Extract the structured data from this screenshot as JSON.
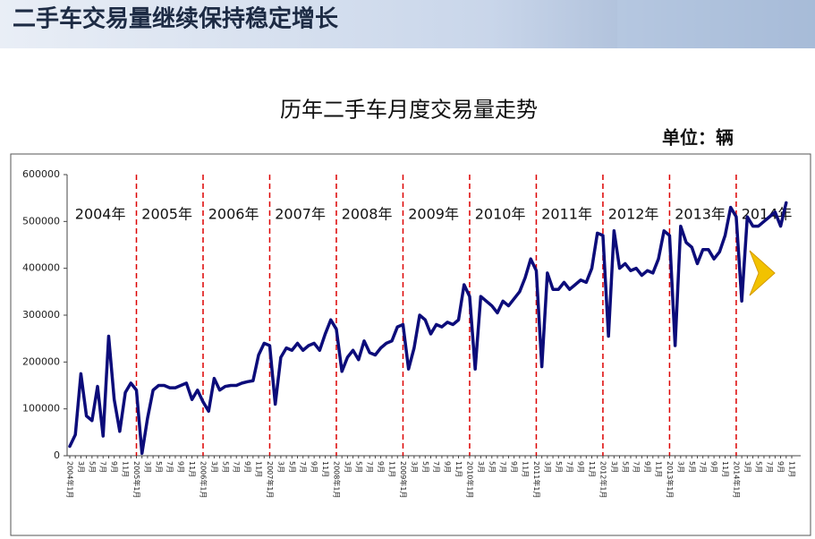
{
  "slide_title": "二手车交易量继续保持稳定增长",
  "chart_data": {
    "type": "line",
    "title": "历年二手车月度交易量走势",
    "unit": "单位：辆",
    "color": "#0c0c7a",
    "year_labels": [
      "2004年",
      "2005年",
      "2006年",
      "2007年",
      "2008年",
      "2009年",
      "2010年",
      "2011年",
      "2012年",
      "2013年",
      "2014年"
    ],
    "categories": [
      "2004年1月",
      null,
      "3月",
      null,
      "5月",
      null,
      "7月",
      null,
      "9月",
      null,
      "11月",
      null,
      "2005年1月",
      null,
      "3月",
      null,
      "5月",
      null,
      "7月",
      null,
      "9月",
      null,
      "11月",
      null,
      "2006年1月",
      null,
      "3月",
      null,
      "5月",
      null,
      "7月",
      null,
      "9月",
      null,
      "11月",
      null,
      "2007年1月",
      null,
      "3月",
      null,
      "5月",
      null,
      "7月",
      null,
      "9月",
      null,
      "11月",
      null,
      "2008年1月",
      null,
      "3月",
      null,
      "5月",
      null,
      "7月",
      null,
      "9月",
      null,
      "11月",
      null,
      "2009年1月",
      null,
      "3月",
      null,
      "5月",
      null,
      "7月",
      null,
      "9月",
      null,
      "11月",
      null,
      "2010年1月",
      null,
      "3月",
      null,
      "5月",
      null,
      "7月",
      null,
      "9月",
      null,
      "11月",
      null,
      "2011年1月",
      null,
      "3月",
      null,
      "5月",
      null,
      "7月",
      null,
      "9月",
      null,
      "11月",
      null,
      "2012年1月",
      null,
      "3月",
      null,
      "5月",
      null,
      "7月",
      null,
      "9月",
      null,
      "11月",
      null,
      "2013年1月",
      null,
      "3月",
      null,
      "5月",
      null,
      "7月",
      null,
      "9月",
      null,
      "11月",
      null,
      "2014年1月",
      null,
      "3月",
      null,
      "5月",
      null,
      "7月",
      null,
      "9月",
      null,
      "11月"
    ],
    "values": [
      20000,
      45000,
      175000,
      85000,
      75000,
      148000,
      42000,
      255000,
      120000,
      52000,
      135000,
      155000,
      140000,
      5000,
      80000,
      140000,
      150000,
      150000,
      145000,
      145000,
      150000,
      155000,
      120000,
      140000,
      115000,
      95000,
      165000,
      140000,
      148000,
      150000,
      150000,
      155000,
      158000,
      160000,
      215000,
      240000,
      235000,
      110000,
      210000,
      230000,
      225000,
      240000,
      225000,
      235000,
      240000,
      225000,
      260000,
      290000,
      270000,
      180000,
      210000,
      225000,
      205000,
      245000,
      220000,
      215000,
      230000,
      240000,
      245000,
      275000,
      280000,
      185000,
      230000,
      300000,
      290000,
      260000,
      280000,
      275000,
      285000,
      280000,
      290000,
      365000,
      340000,
      185000,
      340000,
      330000,
      320000,
      305000,
      330000,
      320000,
      335000,
      350000,
      380000,
      420000,
      395000,
      190000,
      390000,
      355000,
      355000,
      370000,
      355000,
      365000,
      375000,
      370000,
      400000,
      475000,
      470000,
      255000,
      480000,
      400000,
      410000,
      395000,
      400000,
      385000,
      395000,
      390000,
      420000,
      480000,
      470000,
      235000,
      490000,
      455000,
      445000,
      410000,
      440000,
      440000,
      420000,
      435000,
      470000,
      530000,
      510000,
      330000,
      510000,
      490000,
      490000,
      500000,
      510000,
      520000,
      490000,
      540000,
      null
    ],
    "ylim": [
      0,
      600000
    ],
    "yticks": [
      0,
      100000,
      200000,
      300000,
      400000,
      500000,
      600000
    ]
  }
}
